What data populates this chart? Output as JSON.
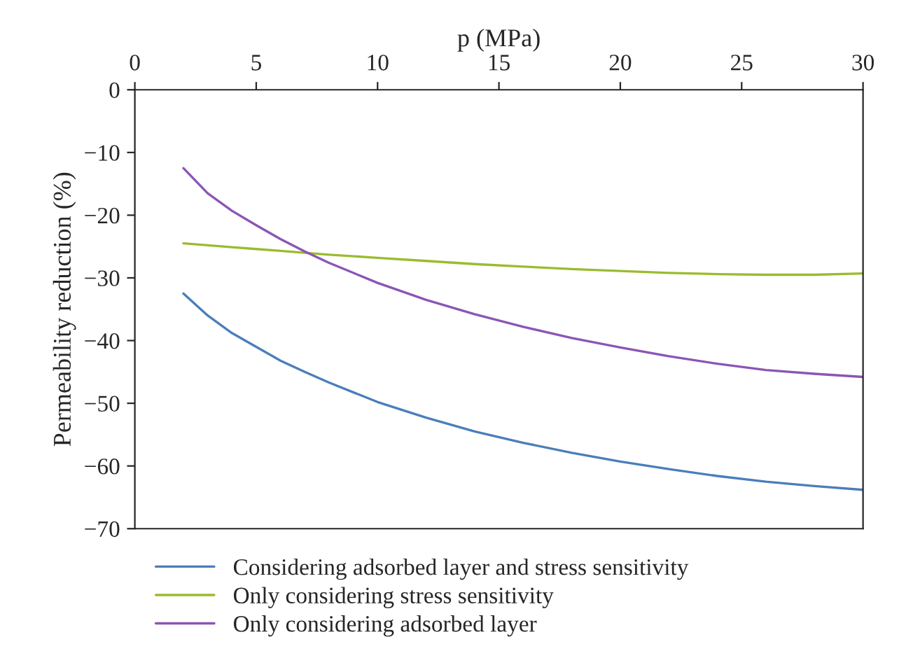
{
  "chart_data": {
    "type": "line",
    "xlabel": "p (MPa)",
    "ylabel": "Permeability reduction (%)",
    "xlim": [
      0,
      30
    ],
    "xticks": [
      0,
      5,
      10,
      15,
      20,
      25,
      30
    ],
    "ylim": [
      -70,
      0
    ],
    "yticks": [
      -70,
      -60,
      -50,
      -40,
      -30,
      -20,
      -10,
      0
    ],
    "grid": false,
    "legend": "bottom",
    "marker": "none",
    "line_style": "solid",
    "x": [
      2,
      3,
      4,
      5,
      6,
      7,
      8,
      10,
      12,
      14,
      16,
      18,
      20,
      22,
      24,
      26,
      28,
      30
    ],
    "series": [
      {
        "name": "Considering adsorbed layer and stress sensitivity",
        "color": "#4a7ebb",
        "values": [
          -32.5,
          -36,
          -38.8,
          -41,
          -43.2,
          -45,
          -46.7,
          -49.8,
          -52.3,
          -54.5,
          -56.3,
          -57.9,
          -59.3,
          -60.5,
          -61.6,
          -62.5,
          -63.2,
          -63.8
        ]
      },
      {
        "name": "Only considering stress sensitivity",
        "color": "#9bbb2f",
        "values": [
          -24.5,
          -24.8,
          -25.1,
          -25.4,
          -25.7,
          -26,
          -26.3,
          -26.8,
          -27.3,
          -27.8,
          -28.2,
          -28.6,
          -28.9,
          -29.2,
          -29.4,
          -29.5,
          -29.5,
          -29.3
        ]
      },
      {
        "name": "Only considering adsorbed layer",
        "color": "#8b55b5",
        "values": [
          -12.5,
          -16.5,
          -19.3,
          -21.6,
          -23.8,
          -25.8,
          -27.6,
          -30.8,
          -33.5,
          -35.8,
          -37.8,
          -39.6,
          -41.1,
          -42.5,
          -43.7,
          -44.7,
          -45.3,
          -45.8
        ]
      }
    ]
  }
}
